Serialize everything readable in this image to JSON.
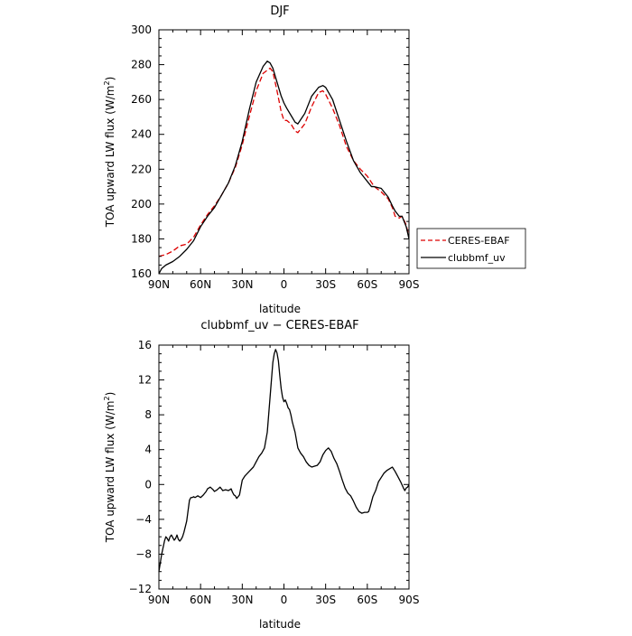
{
  "chart_data": [
    {
      "type": "line",
      "title": "DJF",
      "xlabel": "latitude",
      "ylabel": "TOA upward LW flux (W/m",
      "ylabel_sup": "2",
      "ylabel_end": ")",
      "xlim": [
        90,
        -90
      ],
      "ylim": [
        160,
        300
      ],
      "x_ticks": [
        90,
        60,
        30,
        0,
        -30,
        -60,
        -90
      ],
      "x_tick_labels": [
        "90N",
        "60N",
        "30N",
        "0",
        "30S",
        "60S",
        "90S"
      ],
      "y_ticks": [
        160,
        180,
        200,
        220,
        240,
        260,
        280,
        300
      ],
      "y_tick_labels": [
        "160",
        "180",
        "200",
        "220",
        "240",
        "260",
        "280",
        "300"
      ],
      "legend": {
        "position": "right",
        "entries": [
          "CERES-EBAF",
          "clubbmf_uv"
        ]
      },
      "series": [
        {
          "name": "CERES-EBAF",
          "color": "#dd0000",
          "dash": true,
          "x": [
            90,
            85,
            80,
            75,
            70,
            65,
            60,
            55,
            50,
            45,
            40,
            35,
            30,
            25,
            20,
            15,
            10,
            8,
            5,
            2,
            0,
            -2,
            -5,
            -8,
            -10,
            -15,
            -20,
            -25,
            -28,
            -30,
            -35,
            -40,
            -45,
            -50,
            -55,
            -60,
            -65,
            -70,
            -75,
            -78,
            -80,
            -83,
            -85,
            -88,
            -90
          ],
          "y": [
            170,
            171,
            173,
            176,
            177,
            181,
            188,
            194,
            199,
            205,
            212,
            221,
            234,
            250,
            265,
            275,
            278,
            276,
            265,
            253,
            248,
            248,
            246,
            242,
            241,
            246,
            256,
            264,
            265,
            263,
            255,
            245,
            233,
            225,
            220,
            216,
            210,
            207,
            203,
            198,
            193,
            192,
            193,
            188,
            181
          ]
        },
        {
          "name": "clubbmf_uv",
          "color": "#000000",
          "dash": false,
          "x": [
            90,
            88,
            85,
            80,
            75,
            70,
            65,
            60,
            55,
            50,
            45,
            40,
            35,
            30,
            25,
            20,
            15,
            12,
            10,
            8,
            5,
            2,
            0,
            -2,
            -5,
            -8,
            -10,
            -15,
            -20,
            -25,
            -28,
            -30,
            -35,
            -40,
            -45,
            -50,
            -55,
            -60,
            -63,
            -65,
            -70,
            -75,
            -78,
            -80,
            -83,
            -85,
            -88,
            -90
          ],
          "y": [
            160,
            163,
            165,
            167,
            170,
            174,
            179,
            187,
            193,
            198,
            205,
            212,
            222,
            236,
            254,
            270,
            279,
            282,
            281,
            278,
            270,
            262,
            258,
            255,
            251,
            247,
            246,
            252,
            262,
            267,
            268,
            267,
            260,
            248,
            236,
            225,
            218,
            213,
            210,
            210,
            209,
            204,
            199,
            196,
            193,
            193,
            187,
            180
          ]
        }
      ]
    },
    {
      "type": "line",
      "title": "clubbmf_uv − CERES-EBAF",
      "xlabel": "latitude",
      "ylabel": "TOA upward LW flux (W/m",
      "ylabel_sup": "2",
      "ylabel_end": ")",
      "xlim": [
        90,
        -90
      ],
      "ylim": [
        -12,
        16
      ],
      "x_ticks": [
        90,
        60,
        30,
        0,
        -30,
        -60,
        -90
      ],
      "x_tick_labels": [
        "90N",
        "60N",
        "30N",
        "0",
        "30S",
        "60S",
        "90S"
      ],
      "y_ticks": [
        -12,
        -8,
        -4,
        0,
        4,
        8,
        12,
        16
      ],
      "y_tick_labels": [
        "−12",
        "−8",
        "−4",
        "0",
        "4",
        "8",
        "12",
        "16"
      ],
      "series": [
        {
          "color": "#000000",
          "dash": false,
          "x": [
            90,
            89,
            88,
            86,
            85,
            84,
            83,
            82,
            81,
            80,
            79,
            78,
            77,
            76,
            75,
            74,
            73,
            72,
            70,
            69,
            68,
            67,
            66,
            65,
            64,
            62,
            60,
            58,
            56,
            55,
            53,
            51,
            50,
            48,
            46,
            45,
            44,
            42,
            40,
            38,
            37,
            36,
            35,
            34,
            32,
            30,
            28,
            25,
            22,
            20,
            18,
            16,
            14,
            12,
            11,
            10,
            9,
            8,
            7,
            6,
            5,
            4,
            3,
            2,
            1,
            0,
            -1,
            -2,
            -3,
            -4,
            -5,
            -6,
            -8,
            -10,
            -12,
            -14,
            -16,
            -18,
            -20,
            -22,
            -24,
            -26,
            -28,
            -30,
            -32,
            -34,
            -36,
            -38,
            -40,
            -42,
            -44,
            -46,
            -48,
            -50,
            -52,
            -54,
            -56,
            -58,
            -60,
            -61,
            -62,
            -64,
            -66,
            -68,
            -70,
            -72,
            -74,
            -76,
            -78,
            -80,
            -82,
            -84,
            -86,
            -87,
            -88,
            -89,
            -90
          ],
          "y": [
            -10,
            -9,
            -8,
            -6.5,
            -6,
            -6.2,
            -6.5,
            -6,
            -5.8,
            -6.1,
            -6.4,
            -6.2,
            -5.8,
            -6.3,
            -6.5,
            -6.3,
            -6,
            -5.5,
            -4.2,
            -3,
            -1.8,
            -1.5,
            -1.5,
            -1.4,
            -1.5,
            -1.3,
            -1.5,
            -1.2,
            -0.8,
            -0.5,
            -0.3,
            -0.6,
            -0.8,
            -0.6,
            -0.3,
            -0.5,
            -0.7,
            -0.6,
            -0.7,
            -0.5,
            -0.9,
            -1.2,
            -1.3,
            -1.6,
            -1.2,
            0.5,
            1,
            1.5,
            2,
            2.6,
            3.2,
            3.6,
            4.2,
            6,
            8,
            10,
            12,
            14,
            15,
            15.5,
            15.1,
            14.2,
            12.5,
            11,
            10,
            9.5,
            9.7,
            9.3,
            8.8,
            8.6,
            8,
            7.2,
            6,
            4.2,
            3.6,
            3.2,
            2.6,
            2.2,
            2,
            2.1,
            2.2,
            2.6,
            3.4,
            3.9,
            4.2,
            3.8,
            3,
            2.4,
            1.5,
            0.5,
            -0.4,
            -1,
            -1.3,
            -1.9,
            -2.6,
            -3.1,
            -3.3,
            -3.2,
            -3.2,
            -3.1,
            -2.6,
            -1.4,
            -0.7,
            0.3,
            0.8,
            1.3,
            1.6,
            1.8,
            2,
            1.5,
            0.9,
            0.3,
            -0.4,
            -0.7,
            -0.4,
            -0.3,
            0
          ]
        }
      ]
    }
  ]
}
